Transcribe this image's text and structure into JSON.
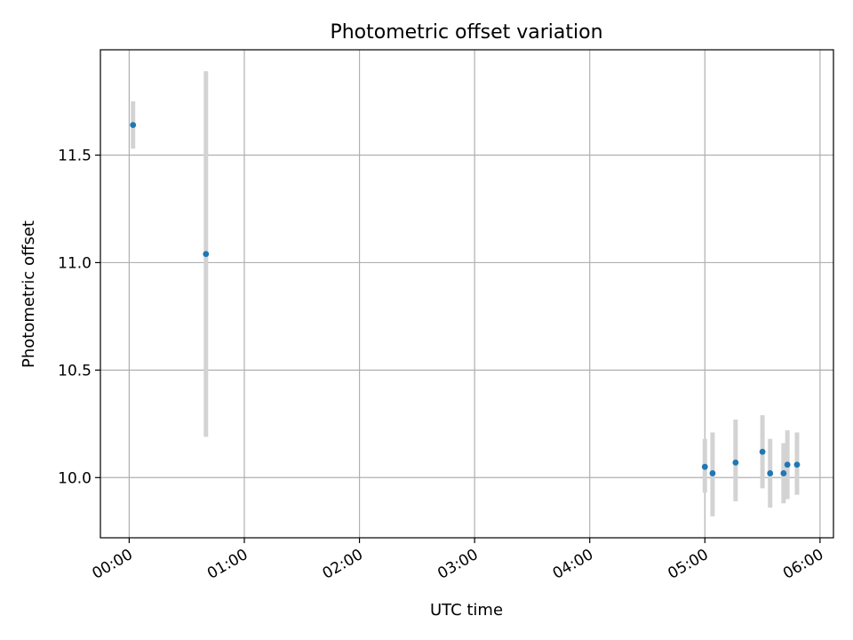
{
  "chart_data": {
    "type": "scatter",
    "title": "Photometric offset variation",
    "xlabel": "UTC time",
    "ylabel": "Photometric offset",
    "x_unit": "time",
    "xlim": [
      "23:45",
      "06:07"
    ],
    "ylim": [
      9.72,
      11.99
    ],
    "xticks": [
      "00:00",
      "01:00",
      "02:00",
      "03:00",
      "04:00",
      "05:00",
      "06:00"
    ],
    "yticks": [
      "10.0",
      "10.5",
      "11.0",
      "11.5"
    ],
    "grid": true,
    "legend": "none",
    "series": [
      {
        "marker_color": "#1f77b4",
        "errorbar_color": "#d3d3d3",
        "points": [
          {
            "x": "00:02",
            "y": 11.64,
            "y_low": 11.53,
            "y_high": 11.75
          },
          {
            "x": "00:40",
            "y": 11.04,
            "y_low": 10.19,
            "y_high": 11.89
          },
          {
            "x": "05:00",
            "y": 10.05,
            "y_low": 9.93,
            "y_high": 10.18
          },
          {
            "x": "05:04",
            "y": 10.02,
            "y_low": 9.82,
            "y_high": 10.21
          },
          {
            "x": "05:16",
            "y": 10.07,
            "y_low": 9.89,
            "y_high": 10.27
          },
          {
            "x": "05:30",
            "y": 10.12,
            "y_low": 9.95,
            "y_high": 10.29
          },
          {
            "x": "05:34",
            "y": 10.02,
            "y_low": 9.86,
            "y_high": 10.18
          },
          {
            "x": "05:41",
            "y": 10.02,
            "y_low": 9.88,
            "y_high": 10.16
          },
          {
            "x": "05:43",
            "y": 10.06,
            "y_low": 9.9,
            "y_high": 10.22
          },
          {
            "x": "05:48",
            "y": 10.06,
            "y_low": 9.92,
            "y_high": 10.21
          }
        ]
      }
    ]
  }
}
